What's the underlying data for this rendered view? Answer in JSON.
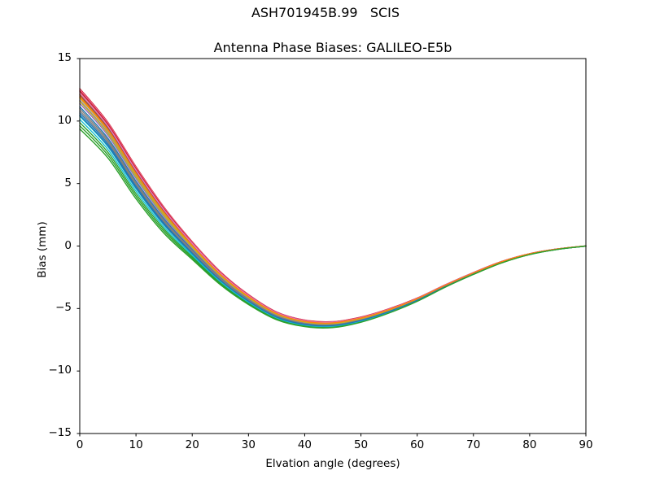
{
  "figure": {
    "background": "#ffffff",
    "axis_color": "#000000",
    "text_color": "#000000"
  },
  "chart_data": {
    "type": "line",
    "suptitle": "ASH701945B.99   SCIS",
    "title": "Antenna Phase Biases: GALILEO-E5b",
    "xlabel": "Elvation angle (degrees)",
    "ylabel": "Bias (mm)",
    "xlim": [
      0,
      90
    ],
    "ylim": [
      -15,
      15
    ],
    "xticks": [
      0,
      10,
      20,
      30,
      40,
      50,
      60,
      70,
      80,
      90
    ],
    "xtick_labels": [
      "0",
      "10",
      "20",
      "30",
      "40",
      "50",
      "60",
      "70",
      "80",
      "90"
    ],
    "yticks": [
      15,
      10,
      5,
      0,
      -5,
      -10,
      -15
    ],
    "ytick_labels": [
      "15",
      "10",
      "5",
      "0",
      "−5",
      "−10",
      "−15"
    ],
    "grid": false,
    "legend": "none",
    "x": [
      0,
      5,
      10,
      15,
      20,
      25,
      30,
      35,
      40,
      45,
      50,
      55,
      60,
      65,
      70,
      75,
      80,
      85,
      90
    ],
    "center": [
      10.9,
      8.4,
      5.0,
      2.0,
      -0.4,
      -2.6,
      -4.3,
      -5.6,
      -6.2,
      -6.3,
      -5.9,
      -5.2,
      -4.3,
      -3.2,
      -2.2,
      -1.3,
      -0.65,
      -0.25,
      0.0
    ],
    "halfwidth": [
      1.7,
      1.5,
      1.35,
      1.1,
      0.75,
      0.55,
      0.42,
      0.33,
      0.28,
      0.25,
      0.22,
      0.18,
      0.14,
      0.1,
      0.08,
      0.06,
      0.04,
      0.02,
      0.01
    ],
    "series_rule": "series value at x[i] = center[i] + spread * halfwidth[i]",
    "series": [
      {
        "color": "#1f77b4",
        "spread": 0.15
      },
      {
        "color": "#ff7f0e",
        "spread": 0.75
      },
      {
        "color": "#2ca02c",
        "spread": -0.6
      },
      {
        "color": "#d62728",
        "spread": 1.0
      },
      {
        "color": "#9467bd",
        "spread": 0.45
      },
      {
        "color": "#8c564b",
        "spread": 0.85
      },
      {
        "color": "#e377c2",
        "spread": 0.95
      },
      {
        "color": "#7f7f7f",
        "spread": 0.05
      },
      {
        "color": "#bcbd22",
        "spread": 0.55
      },
      {
        "color": "#17becf",
        "spread": -0.3
      },
      {
        "color": "#1f77b4",
        "spread": -0.15
      },
      {
        "color": "#ff7f0e",
        "spread": 0.65
      },
      {
        "color": "#2ca02c",
        "spread": -0.75
      },
      {
        "color": "#d62728",
        "spread": 0.9
      },
      {
        "color": "#9467bd",
        "spread": 0.3
      },
      {
        "color": "#8c564b",
        "spread": 0.7
      },
      {
        "color": "#e377c2",
        "spread": 0.8
      },
      {
        "color": "#7f7f7f",
        "spread": -0.05
      },
      {
        "color": "#bcbd22",
        "spread": 0.4
      },
      {
        "color": "#17becf",
        "spread": -0.45
      },
      {
        "color": "#1f77b4",
        "spread": -0.25
      },
      {
        "color": "#ff7f0e",
        "spread": 0.6
      },
      {
        "color": "#2ca02c",
        "spread": -0.9
      }
    ]
  }
}
